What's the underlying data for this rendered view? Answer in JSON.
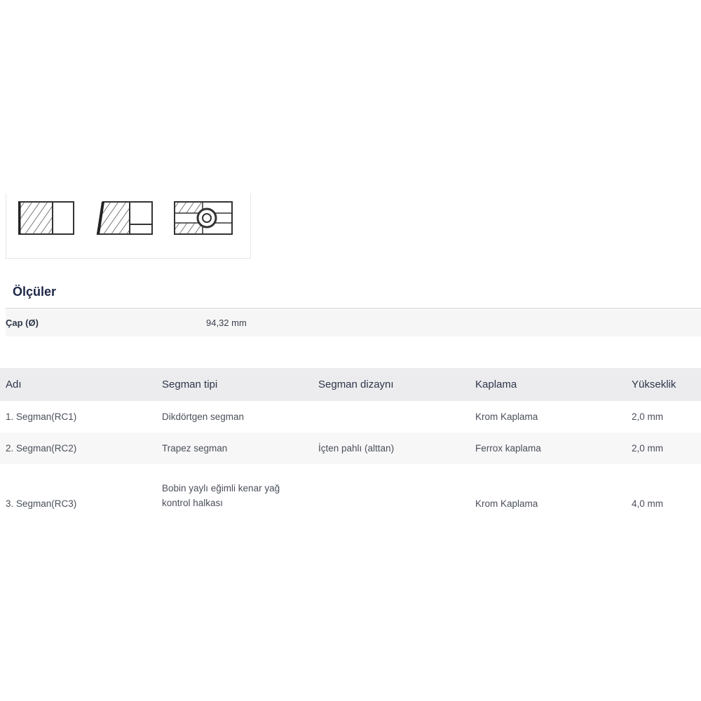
{
  "icons": [
    "rectangular-ring-icon",
    "keystone-ring-icon",
    "oil-control-ring-icon"
  ],
  "dimensions": {
    "title": "Ölçüler",
    "rows": [
      {
        "label": "Çap (Ø)",
        "value": "94,32 mm"
      }
    ]
  },
  "rings": {
    "headers": [
      "Adı",
      "Segman tipi",
      "Segman dizaynı",
      "Kaplama",
      "Yükseklik"
    ],
    "rows": [
      [
        "1. Segman(RC1)",
        "Dikdörtgen segman",
        "",
        "Krom Kaplama",
        "2,0 mm"
      ],
      [
        "2. Segman(RC2)",
        "Trapez segman",
        "İçten pahlı (alttan)",
        "Ferrox kaplama",
        "2,0 mm"
      ],
      [
        "3. Segman(RC3)",
        "Bobin yaylı eğimli kenar yağ kontrol halkası",
        "",
        "Krom Kaplama",
        "4,0 mm"
      ]
    ]
  }
}
